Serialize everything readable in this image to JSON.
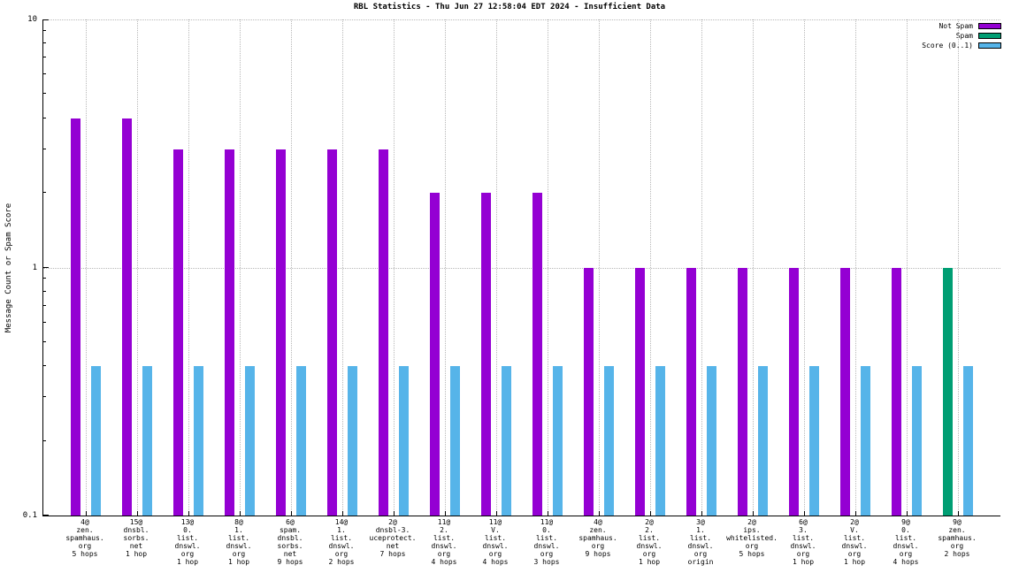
{
  "chart_data": {
    "type": "bar",
    "title": "RBL Statistics - Thu Jun 27 12:58:04 EDT 2024 - Insufficient Data",
    "ylabel": "Message Count or Spam Score",
    "yscale": "log",
    "ylim": [
      0.1,
      10
    ],
    "grid": "on",
    "legend_position": "top-right",
    "yticks": [
      {
        "value": 10,
        "label": "10"
      },
      {
        "value": 1,
        "label": "1"
      },
      {
        "value": 0.1,
        "label": "0.1"
      }
    ],
    "hgrid_values": [
      10,
      1
    ],
    "colors": {
      "notspam": "#9400d3",
      "spam": "#009e73",
      "score": "#56b4e9"
    },
    "legend": [
      {
        "label": "Not Spam",
        "series": "notspam"
      },
      {
        "label": "Spam",
        "series": "spam"
      },
      {
        "label": "Score (0..1)",
        "series": "score"
      }
    ],
    "categories": [
      {
        "label": [
          "4@",
          "zen.",
          "spamhaus.",
          "org",
          "5 hops"
        ],
        "series": "notspam",
        "count": 4,
        "score": 0.4
      },
      {
        "label": [
          "15@",
          "dnsbl.",
          "sorbs.",
          "net",
          "1 hop"
        ],
        "series": "notspam",
        "count": 4,
        "score": 0.4
      },
      {
        "label": [
          "13@",
          "0.",
          "list.",
          "dnswl.",
          "org",
          "1 hop"
        ],
        "series": "notspam",
        "count": 3,
        "score": 0.4
      },
      {
        "label": [
          "8@",
          "1.",
          "list.",
          "dnswl.",
          "org",
          "1 hop"
        ],
        "series": "notspam",
        "count": 3,
        "score": 0.4
      },
      {
        "label": [
          "6@",
          "spam.",
          "dnsbl.",
          "sorbs.",
          "net",
          "9 hops"
        ],
        "series": "notspam",
        "count": 3,
        "score": 0.4
      },
      {
        "label": [
          "14@",
          "1.",
          "list.",
          "dnswl.",
          "org",
          "2 hops"
        ],
        "series": "notspam",
        "count": 3,
        "score": 0.4
      },
      {
        "label": [
          "2@",
          "dnsbl-3.",
          "uceprotect.",
          "net",
          "7 hops"
        ],
        "series": "notspam",
        "count": 3,
        "score": 0.4
      },
      {
        "label": [
          "11@",
          "2.",
          "list.",
          "dnswl.",
          "org",
          "4 hops"
        ],
        "series": "notspam",
        "count": 2,
        "score": 0.4
      },
      {
        "label": [
          "11@",
          "V.",
          "list.",
          "dnswl.",
          "org",
          "4 hops"
        ],
        "series": "notspam",
        "count": 2,
        "score": 0.4
      },
      {
        "label": [
          "11@",
          "0.",
          "list.",
          "dnswl.",
          "org",
          "3 hops"
        ],
        "series": "notspam",
        "count": 2,
        "score": 0.4
      },
      {
        "label": [
          "4@",
          "zen.",
          "spamhaus.",
          "org",
          "9 hops"
        ],
        "series": "notspam",
        "count": 1,
        "score": 0.4
      },
      {
        "label": [
          "2@",
          "2.",
          "list.",
          "dnswl.",
          "org",
          "1 hop"
        ],
        "series": "notspam",
        "count": 1,
        "score": 0.4
      },
      {
        "label": [
          "3@",
          "1.",
          "list.",
          "dnswl.",
          "org",
          "origin"
        ],
        "series": "notspam",
        "count": 1,
        "score": 0.4
      },
      {
        "label": [
          "2@",
          "ips.",
          "whitelisted.",
          "org",
          "5 hops"
        ],
        "series": "notspam",
        "count": 1,
        "score": 0.4
      },
      {
        "label": [
          "6@",
          "3.",
          "list.",
          "dnswl.",
          "org",
          "1 hop"
        ],
        "series": "notspam",
        "count": 1,
        "score": 0.4
      },
      {
        "label": [
          "2@",
          "V.",
          "list.",
          "dnswl.",
          "org",
          "1 hop"
        ],
        "series": "notspam",
        "count": 1,
        "score": 0.4
      },
      {
        "label": [
          "9@",
          "0.",
          "list.",
          "dnswl.",
          "org",
          "4 hops"
        ],
        "series": "notspam",
        "count": 1,
        "score": 0.4
      },
      {
        "label": [
          "9@",
          "zen.",
          "spamhaus.",
          "org",
          "2 hops"
        ],
        "series": "spam",
        "count": 1,
        "score": 0.4
      }
    ]
  }
}
